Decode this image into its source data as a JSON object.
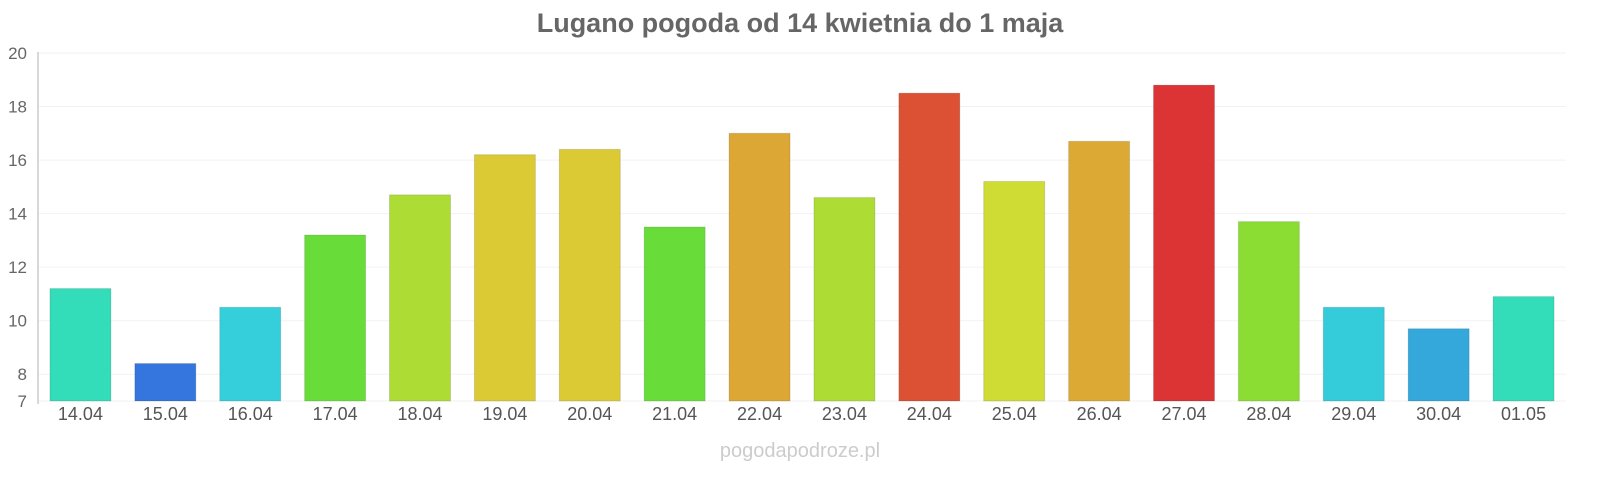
{
  "chart_data": {
    "type": "bar",
    "title": "Lugano pogoda od 14 kwietnia do 1 maja",
    "xlabel": "",
    "ylabel": "",
    "ylim": [
      7,
      20
    ],
    "yticks": [
      7,
      8,
      10,
      12,
      14,
      16,
      18,
      20
    ],
    "grid": true,
    "categories": [
      "14.04",
      "15.04",
      "16.04",
      "17.04",
      "18.04",
      "19.04",
      "20.04",
      "21.04",
      "22.04",
      "23.04",
      "24.04",
      "25.04",
      "26.04",
      "27.04",
      "28.04",
      "29.04",
      "30.04",
      "01.05"
    ],
    "values": [
      11.2,
      8.4,
      10.5,
      13.2,
      14.7,
      16.2,
      16.4,
      13.5,
      17.0,
      14.6,
      18.5,
      15.2,
      16.7,
      18.8,
      13.7,
      10.5,
      9.7,
      10.9
    ],
    "colors": [
      "#34ddb9",
      "#3476dd",
      "#34cfdb",
      "#68dd3a",
      "#addd34",
      "#dbca34",
      "#dbca34",
      "#68dd3a",
      "#dca734",
      "#addd34",
      "#dc5134",
      "#cfdc34",
      "#dca934",
      "#dc3435",
      "#8bdd34",
      "#34cbdb",
      "#34a8db",
      "#34ddb9"
    ]
  },
  "watermark": "pogodapodroze.pl"
}
